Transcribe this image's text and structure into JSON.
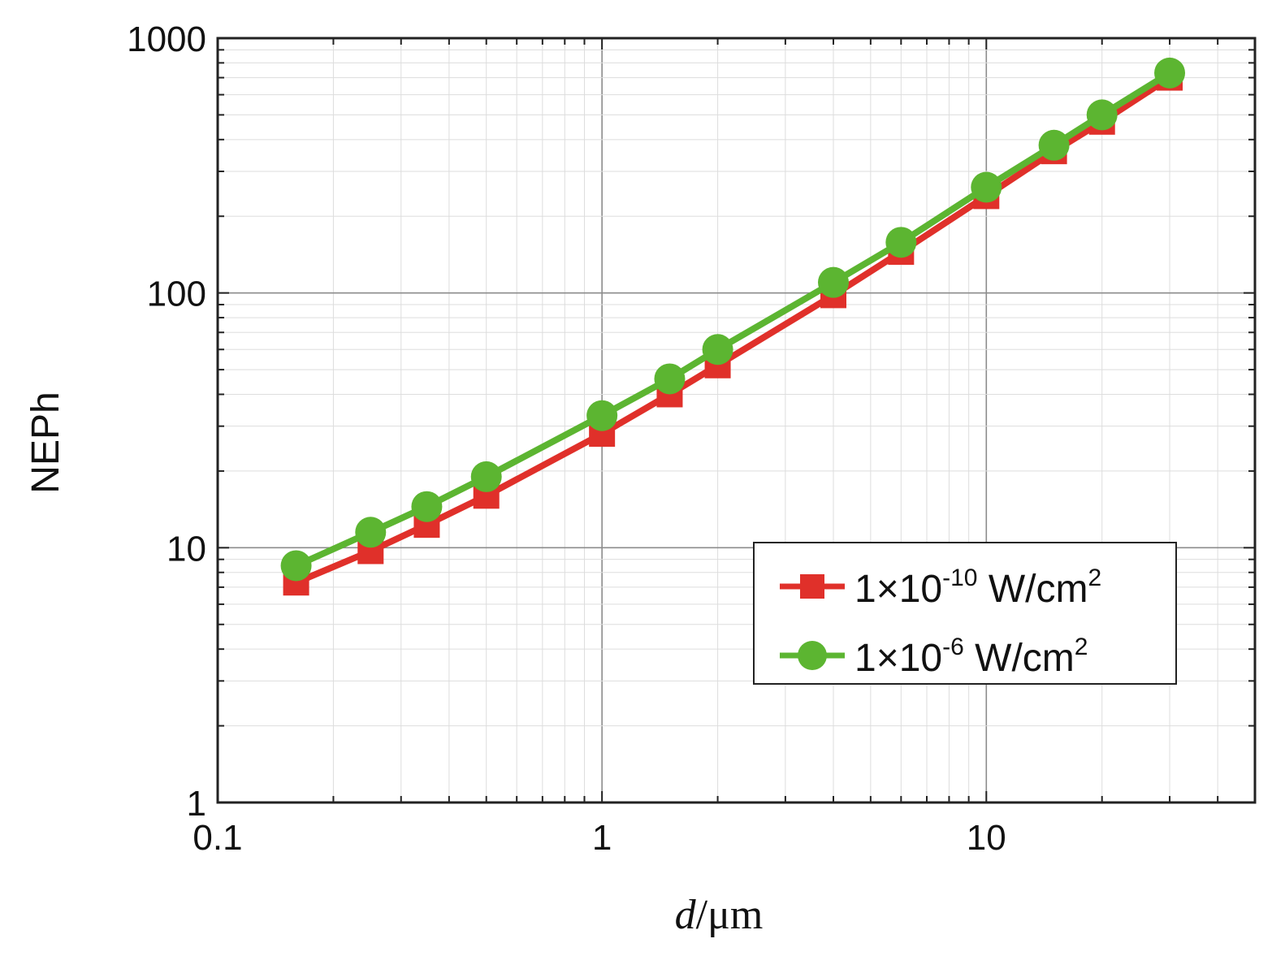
{
  "chart_data": {
    "type": "line",
    "xscale": "log",
    "yscale": "log",
    "xlim": [
      0.1,
      50
    ],
    "ylim": [
      1,
      1000
    ],
    "x_ticks": [
      "0.1",
      "1",
      "10"
    ],
    "y_ticks": [
      "1",
      "10",
      "100",
      "1000"
    ],
    "xlabel": {
      "italic": "d",
      "rest": "/μm"
    },
    "ylabel": "NEPh",
    "grid": true,
    "legend_position": "lower-right",
    "x": [
      0.16,
      0.25,
      0.35,
      0.5,
      1,
      1.5,
      2,
      4,
      6,
      10,
      15,
      20,
      30
    ],
    "series": [
      {
        "name": {
          "prefix": "1×10",
          "exp": "-10",
          "unit": " W/cm",
          "unit_exp": "2"
        },
        "color": "#e0302a",
        "marker": "square",
        "values": [
          7.3,
          9.7,
          12.3,
          16,
          28,
          40,
          52,
          98,
          145,
          240,
          360,
          470,
          700
        ]
      },
      {
        "name": {
          "prefix": "1×10",
          "exp": "-6",
          "unit": " W/cm",
          "unit_exp": "2"
        },
        "color": "#5cb531",
        "marker": "circle",
        "values": [
          8.5,
          11.5,
          14.5,
          19,
          33,
          46,
          60,
          110,
          158,
          260,
          380,
          500,
          730
        ]
      }
    ]
  }
}
